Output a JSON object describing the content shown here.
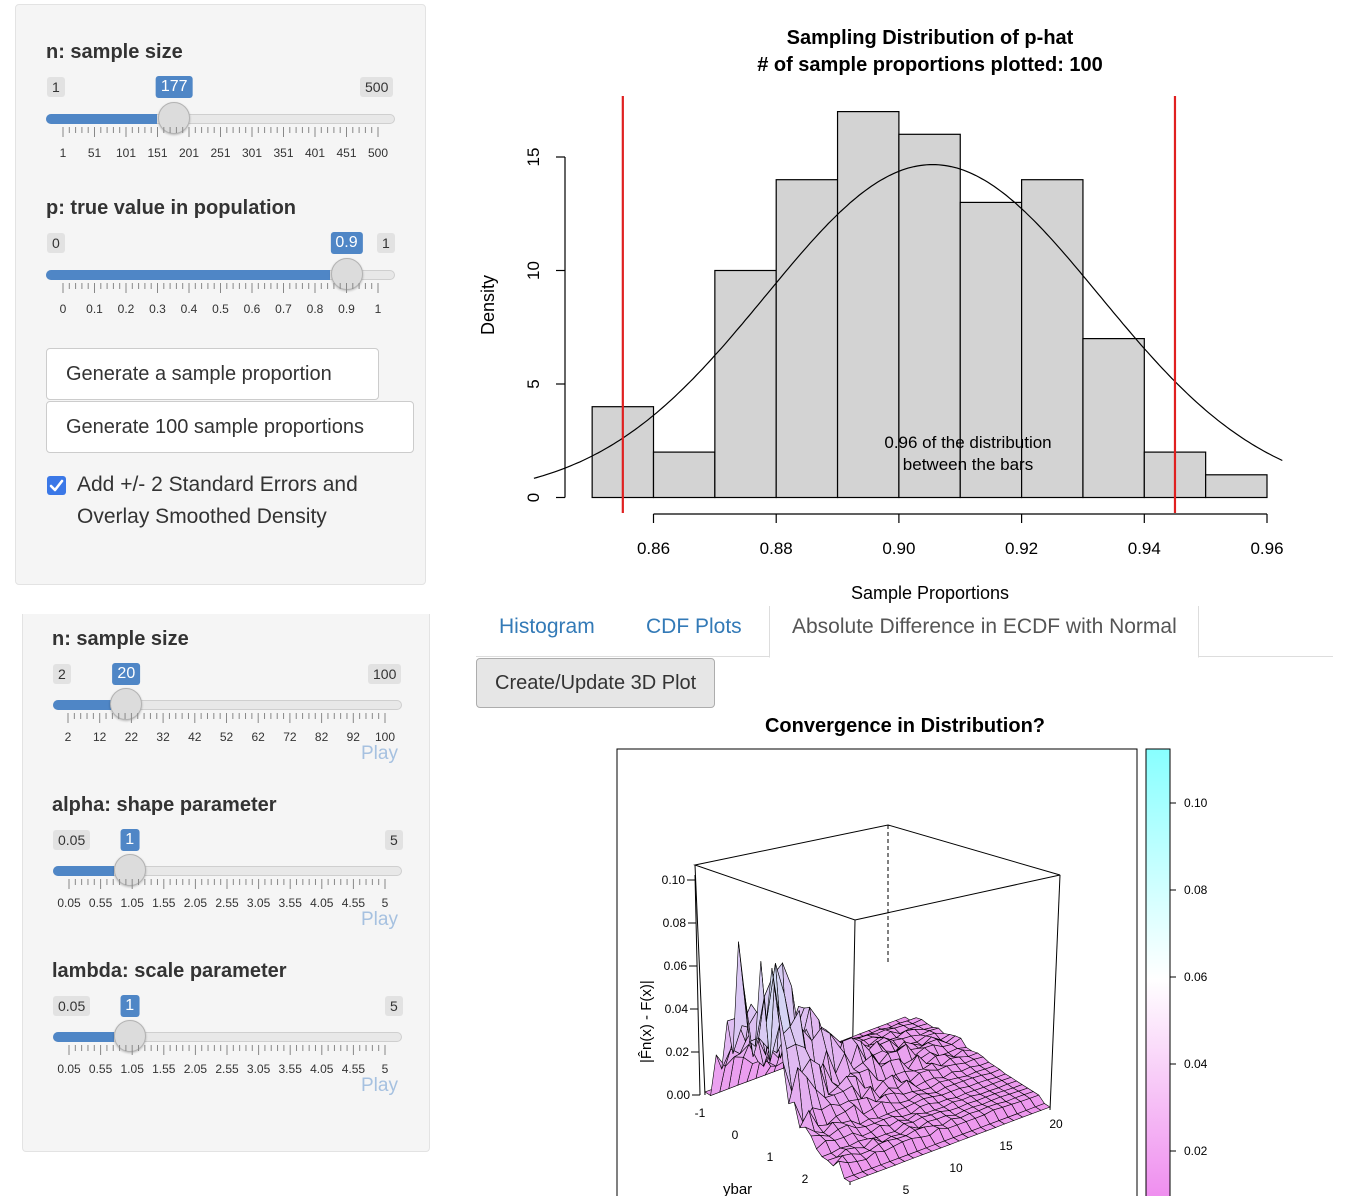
{
  "panel1": {
    "slider_n": {
      "label": "n: sample size",
      "min": "1",
      "max": "500",
      "value": "177",
      "fraction": 0.353,
      "ticks": [
        "1",
        "51",
        "101",
        "151",
        "201",
        "251",
        "301",
        "351",
        "401",
        "451",
        "500"
      ]
    },
    "slider_p": {
      "label": "p: true value in population",
      "min": "0",
      "max": "1",
      "value": "0.9",
      "fraction": 0.9,
      "ticks": [
        "0",
        "0.1",
        "0.2",
        "0.3",
        "0.4",
        "0.5",
        "0.6",
        "0.7",
        "0.8",
        "0.9",
        "1"
      ]
    },
    "btn_one": "Generate a sample proportion",
    "btn_hundred": "Generate 100 sample proportions",
    "checkbox_line1": "Add +/- 2 Standard Errors and",
    "checkbox_line2": "Overlay Smoothed Density",
    "checkbox_checked": true
  },
  "panel2": {
    "slider_n": {
      "label": "n: sample size",
      "min": "2",
      "max": "100",
      "value": "20",
      "fraction": 0.184,
      "ticks": [
        "2",
        "12",
        "22",
        "32",
        "42",
        "52",
        "62",
        "72",
        "82",
        "92",
        "100"
      ],
      "play": "Play"
    },
    "slider_alpha": {
      "label": "alpha: shape parameter",
      "min": "0.05",
      "max": "5",
      "value": "1",
      "fraction": 0.192,
      "ticks": [
        "0.05",
        "0.55",
        "1.05",
        "1.55",
        "2.05",
        "2.55",
        "3.05",
        "3.55",
        "4.05",
        "4.55",
        "5"
      ],
      "play": "Play"
    },
    "slider_lambda": {
      "label": "lambda: scale parameter",
      "min": "0.05",
      "max": "5",
      "value": "1",
      "fraction": 0.192,
      "ticks": [
        "0.05",
        "0.55",
        "1.05",
        "1.55",
        "2.05",
        "2.55",
        "3.05",
        "3.55",
        "4.05",
        "4.55",
        "5"
      ],
      "play": "Play"
    }
  },
  "tabs": {
    "items": [
      "Histogram",
      "CDF Plots",
      "Absolute Difference in ECDF with Normal"
    ],
    "active_index": 2
  },
  "btn_3d": "Create/Update 3D Plot",
  "histogram": {
    "title1": "Sampling Distribution of p-hat",
    "title2": "# of sample proportions plotted: 100",
    "annotation1": "0.96 of the distribution",
    "annotation2": "between the bars"
  },
  "chart_data": [
    {
      "type": "bar",
      "title": "Sampling Distribution of p-hat\n# of sample proportions plotted: 100",
      "xlabel": "Sample Proportions",
      "ylabel": "Density",
      "bin_edges": [
        0.85,
        0.86,
        0.87,
        0.88,
        0.89,
        0.9,
        0.91,
        0.92,
        0.93,
        0.94,
        0.95,
        0.96
      ],
      "values": [
        4,
        2,
        10,
        14,
        17,
        16,
        13,
        14,
        7,
        2,
        1
      ],
      "xticks": [
        "0.86",
        "0.88",
        "0.90",
        "0.92",
        "0.94",
        "0.96"
      ],
      "yticks": [
        "0",
        "5",
        "10",
        "15"
      ],
      "xlim": [
        0.84,
        0.965
      ],
      "ylim": [
        0,
        17
      ],
      "normal_curve": {
        "mean": 0.9055,
        "sd": 0.0272
      },
      "vlines": [
        0.855,
        0.945
      ],
      "vline_color": "#e02020",
      "bar_color": "#d3d3d3"
    },
    {
      "type": "surface3d",
      "title": "Convergence in Distribution?",
      "zlabel": "|F̂n(x) - F(x)|",
      "xlabel": "ybar",
      "z_ticks": [
        "0.00",
        "0.02",
        "0.04",
        "0.06",
        "0.08",
        "0.10"
      ],
      "x_ticks": [
        "-1",
        "0",
        "1",
        "2"
      ],
      "y_ticks": [
        "5",
        "10",
        "15",
        "20"
      ],
      "colorbar_ticks": [
        "0.02",
        "0.04",
        "0.06",
        "0.08",
        "0.10"
      ],
      "colorbar_low": "#ee88ee",
      "colorbar_high": "#88ffff"
    }
  ]
}
